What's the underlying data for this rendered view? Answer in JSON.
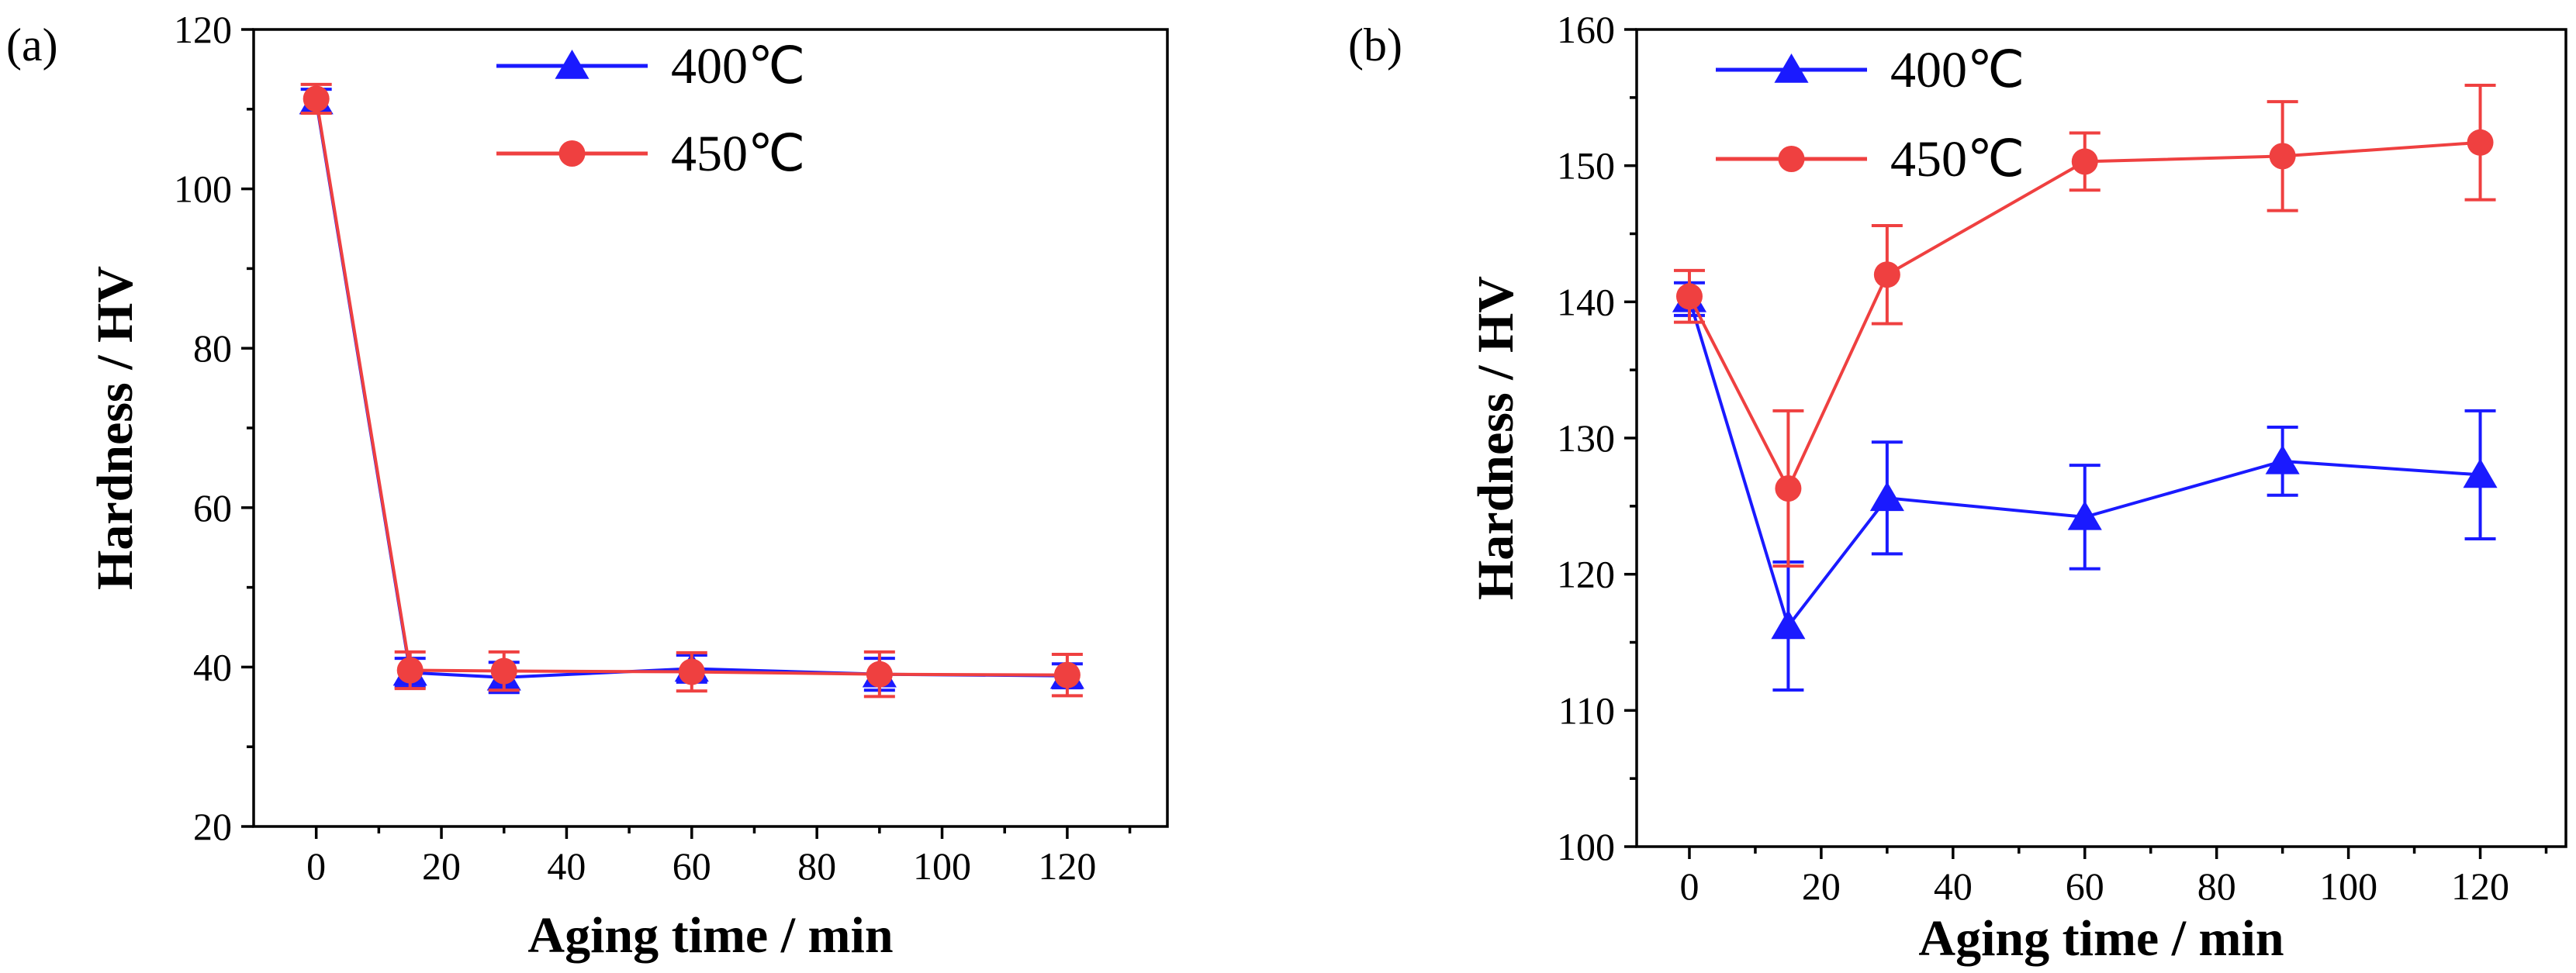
{
  "chart_data": [
    {
      "panel": "(a)",
      "type": "line",
      "xlabel": "Aging time / min",
      "ylabel": "Hardness / HV",
      "xlim": [
        -10,
        136
      ],
      "ylim": [
        20,
        120
      ],
      "xticks": [
        "0",
        "20",
        "40",
        "60",
        "80",
        "100",
        "120"
      ],
      "yticks": [
        "20",
        "40",
        "60",
        "80",
        "100",
        "120"
      ],
      "legend_position": "top-center",
      "series": [
        {
          "name": "400℃",
          "color": "#1a1aff",
          "marker": "triangle",
          "x": [
            0,
            15,
            30,
            60,
            90,
            120
          ],
          "y": [
            111,
            39.3,
            38.7,
            39.8,
            39.1,
            38.9
          ],
          "err": [
            1.5,
            1.8,
            1.9,
            1.7,
            2.0,
            1.5
          ]
        },
        {
          "name": "450℃",
          "color": "#ef4040",
          "marker": "circle",
          "x": [
            0,
            15,
            30,
            60,
            90,
            120
          ],
          "y": [
            111.3,
            39.6,
            39.5,
            39.4,
            39.1,
            39.0
          ],
          "err": [
            1.8,
            2.3,
            2.4,
            2.4,
            2.8,
            2.6
          ]
        }
      ]
    },
    {
      "panel": "(b)",
      "type": "line",
      "xlabel": "Aging time / min",
      "ylabel": "Hardness / HV",
      "xlim": [
        -8,
        133
      ],
      "ylim": [
        100,
        160
      ],
      "xticks": [
        "0",
        "20",
        "40",
        "60",
        "80",
        "100",
        "120"
      ],
      "yticks": [
        "100",
        "110",
        "120",
        "130",
        "140",
        "150",
        "160"
      ],
      "legend_position": "top-left",
      "series": [
        {
          "name": "400℃",
          "color": "#1a1aff",
          "marker": "triangle",
          "x": [
            0,
            15,
            30,
            60,
            90,
            120
          ],
          "y": [
            140.2,
            116.2,
            125.6,
            124.2,
            128.3,
            127.3
          ],
          "err": [
            1.2,
            4.7,
            4.1,
            3.8,
            2.5,
            4.7
          ]
        },
        {
          "name": "450℃",
          "color": "#ef4040",
          "marker": "circle",
          "x": [
            0,
            15,
            30,
            60,
            90,
            120
          ],
          "y": [
            140.4,
            126.3,
            142.0,
            150.3,
            150.7,
            151.7
          ],
          "err": [
            1.9,
            5.7,
            3.6,
            2.1,
            4.0,
            4.2
          ]
        }
      ]
    }
  ]
}
